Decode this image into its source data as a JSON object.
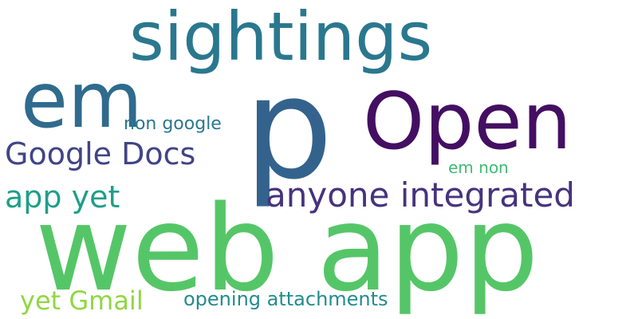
{
  "words": [
    {
      "text": "sightings",
      "color": "#2a788e"
    },
    {
      "text": "em",
      "color": "#2f6b8e"
    },
    {
      "text": "p",
      "color": "#33638d"
    },
    {
      "text": "Open",
      "color": "#440f62"
    },
    {
      "text": "non google",
      "color": "#2a788e"
    },
    {
      "text": "Google Docs",
      "color": "#414487"
    },
    {
      "text": "em non",
      "color": "#3fbc73"
    },
    {
      "text": "app yet",
      "color": "#1f9e89"
    },
    {
      "text": "anyone integrated",
      "color": "#46337e"
    },
    {
      "text": "web app",
      "color": "#55c667"
    },
    {
      "text": "yet Gmail",
      "color": "#8fd744"
    },
    {
      "text": "opening attachments",
      "color": "#228c8d"
    }
  ]
}
